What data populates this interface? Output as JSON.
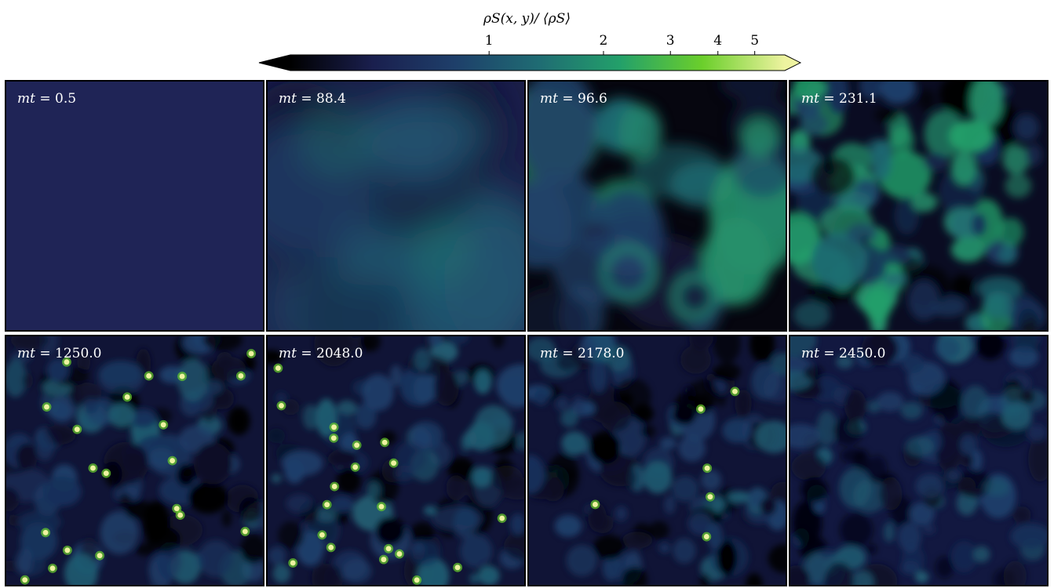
{
  "chart_data": {
    "type": "heatmap",
    "colorbar": {
      "title": "ρS(x, y)/ ⟨ρS⟩",
      "scale": "log",
      "ticks": [
        1,
        2,
        3,
        4,
        5
      ],
      "tick_labels": [
        "1",
        "2",
        "3",
        "4",
        "5"
      ],
      "range": [
        0.3,
        6
      ],
      "extend": "both",
      "colormap": [
        "#000000",
        "#1a1f4e",
        "#1e3f6a",
        "#1f6b73",
        "#23a06a",
        "#6bcf2b",
        "#eef3a0"
      ]
    },
    "panels": [
      {
        "label_var": "mt",
        "label_value": "0.5",
        "state": "uniform"
      },
      {
        "label_var": "mt",
        "label_value": "88.4",
        "state": "smooth-fluctuations"
      },
      {
        "label_var": "mt",
        "label_value": "96.6",
        "state": "filaments-and-rings"
      },
      {
        "label_var": "mt",
        "label_value": "231.1",
        "state": "clumpy"
      },
      {
        "label_var": "mt",
        "label_value": "1250.0",
        "state": "noise-with-bright-points"
      },
      {
        "label_var": "mt",
        "label_value": "2048.0",
        "state": "noise-with-bright-points"
      },
      {
        "label_var": "mt",
        "label_value": "2178.0",
        "state": "noise-with-few-points"
      },
      {
        "label_var": "mt",
        "label_value": "2450.0",
        "state": "noise"
      }
    ]
  }
}
